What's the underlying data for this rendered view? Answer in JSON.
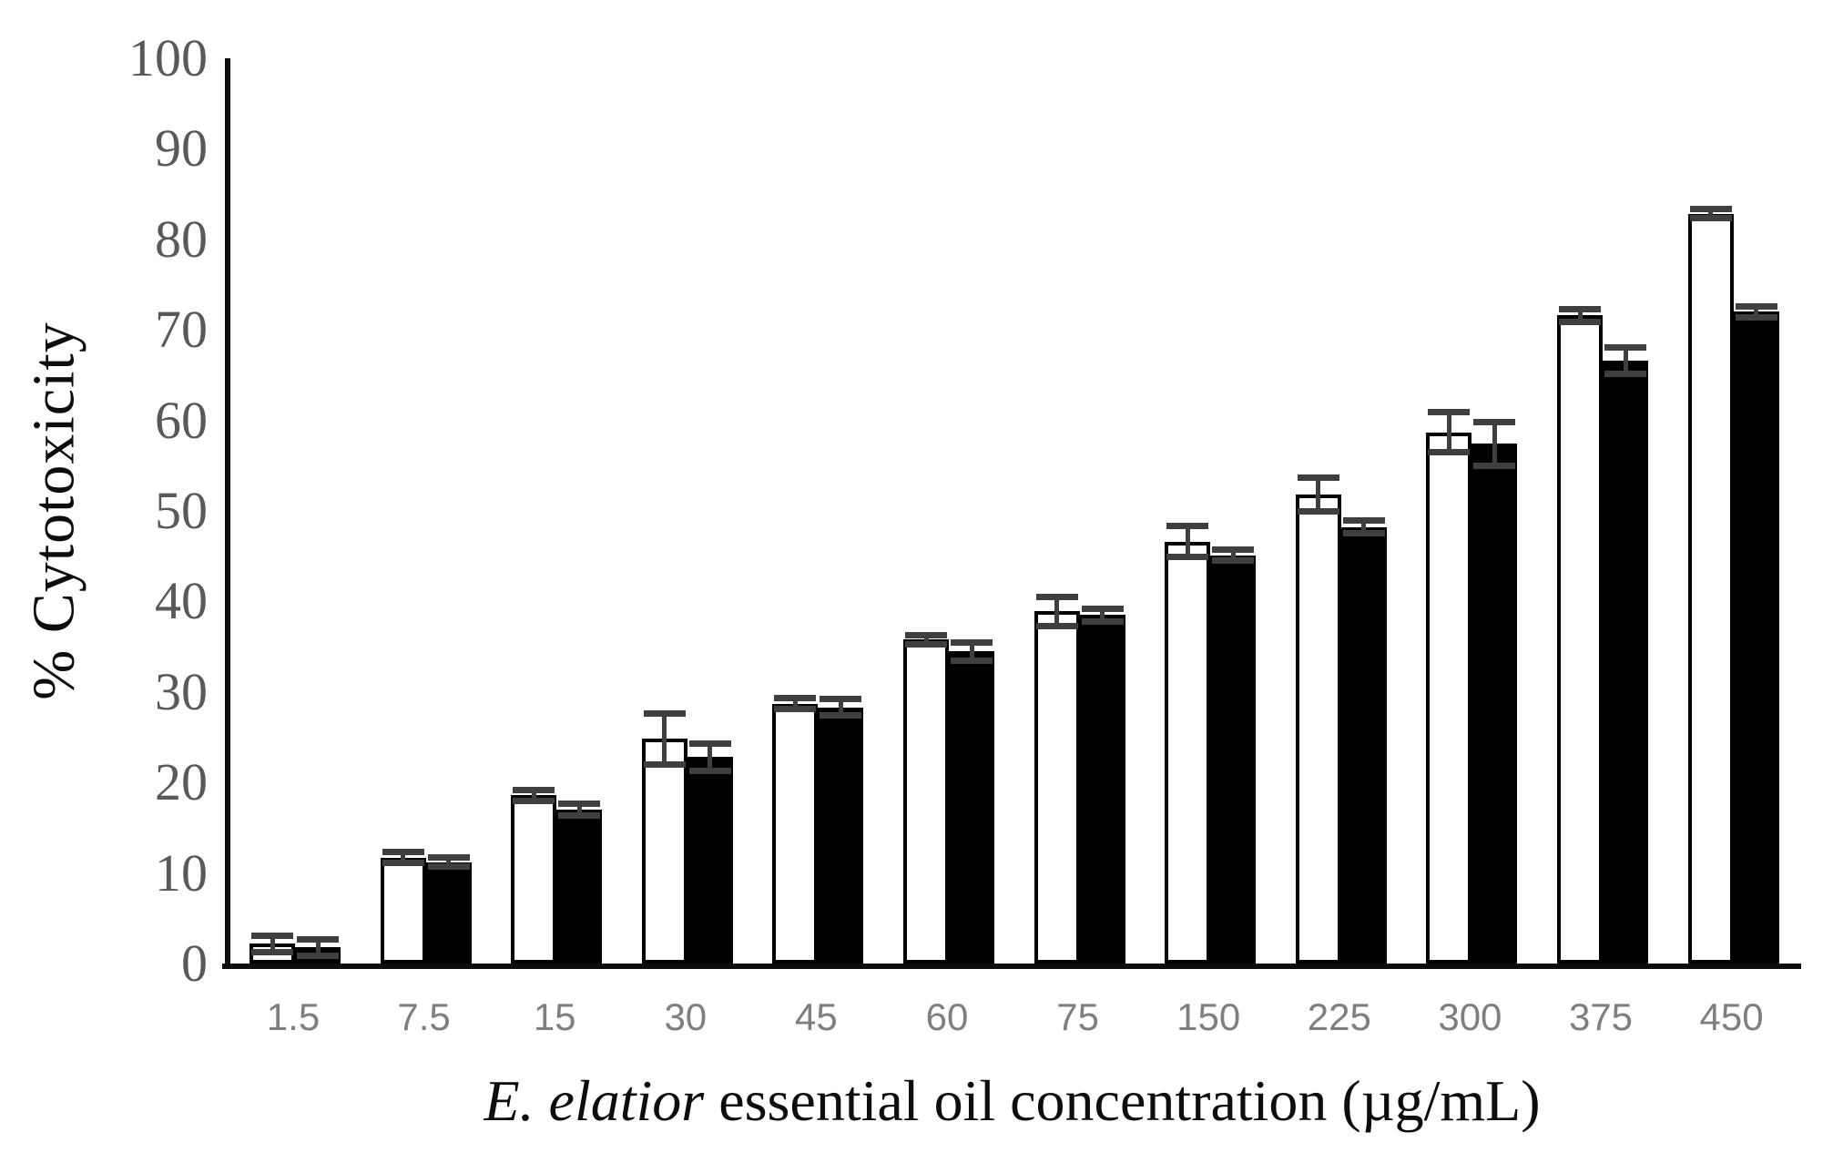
{
  "chart_data": {
    "type": "bar",
    "title": "",
    "ylabel": "% Cytotoxicity",
    "xlabel_italic_part": "E. elatior",
    "xlabel_plain_part": " essential oil concentration (µg/mL)",
    "categories": [
      "1.5",
      "7.5",
      "15",
      "30",
      "45",
      "60",
      "75",
      "150",
      "225",
      "300",
      "375",
      "450"
    ],
    "series": [
      {
        "name": "white-bars",
        "fill": "#ffffff",
        "values": [
          2.2,
          11.7,
          18.6,
          24.8,
          28.7,
          35.8,
          38.9,
          46.6,
          51.8,
          58.7,
          71.6,
          82.8
        ],
        "errors": [
          0.9,
          0.6,
          0.6,
          2.8,
          0.6,
          0.5,
          1.6,
          1.7,
          1.9,
          2.2,
          0.7,
          0.5
        ]
      },
      {
        "name": "black-bars",
        "fill": "#000000",
        "values": [
          1.8,
          11.2,
          17.0,
          22.8,
          28.3,
          34.5,
          38.5,
          45.1,
          48.2,
          57.4,
          66.6,
          72.0
        ],
        "errors": [
          0.9,
          0.5,
          0.7,
          1.5,
          0.9,
          1.0,
          0.7,
          0.6,
          0.7,
          2.4,
          1.5,
          0.6
        ]
      }
    ],
    "ylim": [
      0,
      100
    ],
    "yticks": [
      0,
      10,
      20,
      30,
      40,
      50,
      60,
      70,
      80,
      90,
      100
    ],
    "grid": false,
    "legend_position": "none",
    "error_bars": true,
    "colors": {
      "axis": "#0d0d0d",
      "ytick_text": "#595959",
      "xtick_text": "#7f7f7f",
      "error_bar": "#3f3f3f",
      "bar_outline": "#000000"
    }
  }
}
